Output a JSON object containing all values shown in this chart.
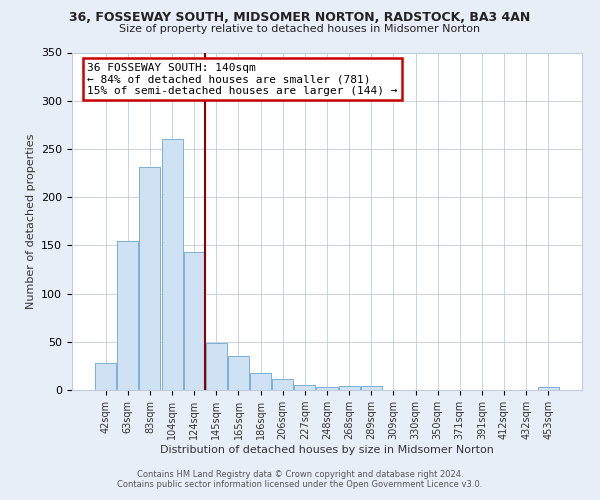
{
  "title": "36, FOSSEWAY SOUTH, MIDSOMER NORTON, RADSTOCK, BA3 4AN",
  "subtitle": "Size of property relative to detached houses in Midsomer Norton",
  "xlabel": "Distribution of detached houses by size in Midsomer Norton",
  "ylabel": "Number of detached properties",
  "bar_labels": [
    "42sqm",
    "63sqm",
    "83sqm",
    "104sqm",
    "124sqm",
    "145sqm",
    "165sqm",
    "186sqm",
    "206sqm",
    "227sqm",
    "248sqm",
    "268sqm",
    "289sqm",
    "309sqm",
    "330sqm",
    "350sqm",
    "371sqm",
    "391sqm",
    "412sqm",
    "432sqm",
    "453sqm"
  ],
  "bar_values": [
    28,
    155,
    231,
    260,
    143,
    49,
    35,
    18,
    11,
    5,
    3,
    4,
    4,
    0,
    0,
    0,
    0,
    0,
    0,
    0,
    3
  ],
  "bar_color": "#cfe2f3",
  "bar_edge_color": "#7bafd4",
  "ylim": [
    0,
    350
  ],
  "yticks": [
    0,
    50,
    100,
    150,
    200,
    250,
    300,
    350
  ],
  "vline_x_idx": 5,
  "vline_color": "#8b0000",
  "annotation_title": "36 FOSSEWAY SOUTH: 140sqm",
  "annotation_line1": "← 84% of detached houses are smaller (781)",
  "annotation_line2": "15% of semi-detached houses are larger (144) →",
  "annotation_box_color": "#ffffff",
  "annotation_box_edge_color": "#cc0000",
  "footer1": "Contains HM Land Registry data © Crown copyright and database right 2024.",
  "footer2": "Contains public sector information licensed under the Open Government Licence v3.0.",
  "bg_color": "#e8eef8",
  "plot_bg_color": "#ffffff",
  "grid_color": "#c0ccdd"
}
